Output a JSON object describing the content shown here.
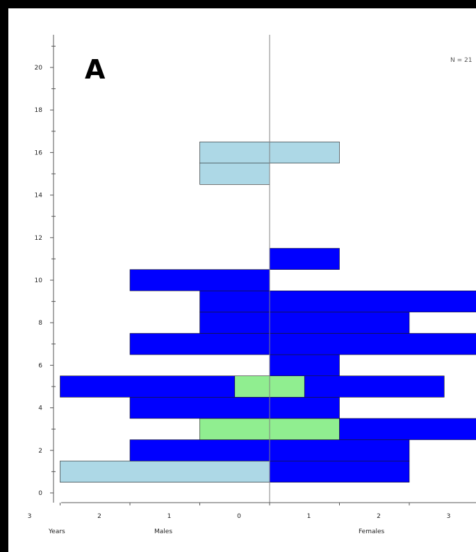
{
  "panel": {
    "letter": "A",
    "n_label": "N = 21"
  },
  "chart_data": {
    "type": "bar",
    "subtype": "population-pyramid",
    "title": "",
    "y_ticks": [
      0,
      2,
      4,
      6,
      8,
      10,
      12,
      14,
      16,
      18,
      20
    ],
    "ylim": [
      -0.5,
      21
    ],
    "xlim": [
      -3,
      3
    ],
    "x_tick_values": [
      -3,
      -2,
      -1,
      0,
      1,
      2,
      3
    ],
    "x_tick_labels": [
      "3",
      "2",
      "1",
      "0",
      "1",
      "2",
      "3"
    ],
    "x_titles": {
      "left": "Years",
      "males": "Males",
      "females": "Females"
    },
    "colors": {
      "light": "#add8e6",
      "dark": "#0000ff",
      "green": "#90ee90",
      "border": "#1a1a1a"
    },
    "series": {
      "males": [
        {
          "age": 1,
          "value": 3,
          "color": "light"
        },
        {
          "age": 2,
          "value": 2,
          "color": "dark"
        },
        {
          "age": 3,
          "value": 1,
          "color": "green"
        },
        {
          "age": 4,
          "value": 2,
          "color": "dark"
        },
        {
          "age": 5,
          "value": 0.5,
          "color": "green"
        },
        {
          "age": 5,
          "value": 2.5,
          "color": "dark",
          "offset": 0.5
        },
        {
          "age": 7,
          "value": 2,
          "color": "dark"
        },
        {
          "age": 8,
          "value": 1,
          "color": "dark"
        },
        {
          "age": 9,
          "value": 1,
          "color": "dark"
        },
        {
          "age": 10,
          "value": 2,
          "color": "dark"
        },
        {
          "age": 15,
          "value": 1,
          "color": "light"
        },
        {
          "age": 16,
          "value": 1,
          "color": "light"
        }
      ],
      "females": [
        {
          "age": 1,
          "value": 2,
          "color": "dark"
        },
        {
          "age": 2,
          "value": 2,
          "color": "dark"
        },
        {
          "age": 3,
          "value": 1,
          "color": "green"
        },
        {
          "age": 3,
          "value": 3,
          "color": "dark",
          "offset": 1
        },
        {
          "age": 4,
          "value": 1,
          "color": "dark"
        },
        {
          "age": 5,
          "value": 0.5,
          "color": "green"
        },
        {
          "age": 5,
          "value": 2,
          "color": "dark",
          "offset": 0.5
        },
        {
          "age": 6,
          "value": 1,
          "color": "dark"
        },
        {
          "age": 7,
          "value": 3,
          "color": "dark"
        },
        {
          "age": 8,
          "value": 2,
          "color": "dark"
        },
        {
          "age": 9,
          "value": 3,
          "color": "dark"
        },
        {
          "age": 11,
          "value": 1,
          "color": "dark"
        },
        {
          "age": 16,
          "value": 1,
          "color": "light"
        }
      ]
    }
  }
}
